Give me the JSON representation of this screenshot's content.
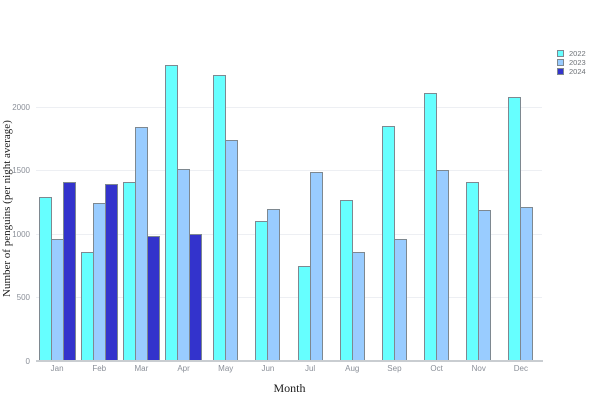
{
  "chart_data": {
    "type": "bar",
    "title": "",
    "xlabel": "Month",
    "ylabel": "Number of penguins (per night average)",
    "categories": [
      "Jan",
      "Feb",
      "Mar",
      "Apr",
      "May",
      "Jun",
      "Jul",
      "Aug",
      "Sep",
      "Oct",
      "Nov",
      "Dec"
    ],
    "series": [
      {
        "name": "2022",
        "color": "#66FFFF",
        "values": [
          1290,
          860,
          1410,
          2330,
          2250,
          1100,
          750,
          1270,
          1850,
          2110,
          1410,
          2080
        ]
      },
      {
        "name": "2023",
        "color": "#99CCFF",
        "values": [
          960,
          1240,
          1840,
          1510,
          1740,
          1200,
          1490,
          860,
          960,
          1500,
          1190,
          1210
        ]
      },
      {
        "name": "2024",
        "color": "#3333CC",
        "values": [
          1410,
          1390,
          980,
          1000,
          null,
          null,
          null,
          null,
          null,
          null,
          null,
          null
        ]
      }
    ],
    "yticks": [
      0,
      500,
      1000,
      1500,
      2000
    ],
    "ylim": [
      0,
      2400
    ],
    "grid": true,
    "legend_position": "top-right",
    "legend_entries": [
      "2022",
      "2023",
      "2024"
    ],
    "bar_border_color": "#7e8890",
    "axis_tick_color": "#8a8f98"
  }
}
